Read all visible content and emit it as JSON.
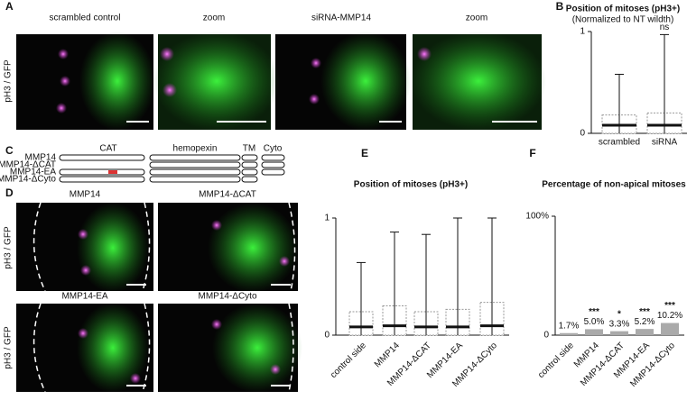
{
  "panel_a": {
    "letter": "A",
    "side_label": "pH3 / GFP",
    "headers": [
      "scrambled control",
      "zoom",
      "siRNA-MMP14",
      "zoom"
    ]
  },
  "panel_c": {
    "letter": "C",
    "domains": [
      "CAT",
      "hemopexin",
      "TM",
      "Cyto"
    ],
    "constructs": [
      "MMP14",
      "MMP14-ΔCAT",
      "MMP14-EA",
      "MMP14-ΔCyto"
    ]
  },
  "panel_d": {
    "letter": "D",
    "side_label": "pH3 / GFP",
    "headers": [
      "MMP14",
      "MMP14-ΔCAT",
      "MMP14-EA",
      "MMP14-ΔCyto"
    ]
  },
  "chart_data": [
    {
      "type": "box",
      "letter": "B",
      "title": "Position of mitoses (pH3+)",
      "subtitle": "(Normalized to NT wildth)",
      "categories": [
        "scrambled",
        "siRNA"
      ],
      "min": [
        0,
        0
      ],
      "upper": [
        0.18,
        0.2
      ],
      "median": [
        0.08,
        0.08
      ],
      "max": [
        0.58,
        0.97
      ],
      "annotations": [
        null,
        "ns"
      ],
      "ylim": [
        0,
        1
      ],
      "yticks": [
        0,
        1
      ],
      "color": "#999999"
    },
    {
      "type": "box",
      "letter": "E",
      "title": "Position of mitoses (pH3+)",
      "categories": [
        "control side",
        "MMP14",
        "MMP14-ΔCAT",
        "MMP14-EA",
        "MMP14-ΔCyto"
      ],
      "min": [
        0,
        0,
        0,
        0,
        0
      ],
      "upper": [
        0.2,
        0.25,
        0.2,
        0.22,
        0.28
      ],
      "median": [
        0.07,
        0.08,
        0.07,
        0.07,
        0.08
      ],
      "max": [
        0.62,
        0.88,
        0.86,
        1,
        1
      ],
      "ylim": [
        0,
        1
      ],
      "yticks": [
        0,
        1
      ],
      "color": "#999999"
    },
    {
      "type": "bar",
      "letter": "F",
      "title": "Percentage of non-apical mitoses",
      "categories": [
        "control side",
        "MMP14",
        "MMP14-ΔCAT",
        "MMP14-EA",
        "MMP14-ΔCyto"
      ],
      "values": [
        1.7,
        5.0,
        3.3,
        5.2,
        10.2
      ],
      "value_labels": [
        "1.7%",
        "5.0%",
        "3.3%",
        "5.2%",
        "10.2%"
      ],
      "annotations": [
        null,
        "***",
        "*",
        "***",
        "***"
      ],
      "ylim": [
        0,
        100
      ],
      "yticks": [
        0,
        {
          "value": 100,
          "label": "100%"
        }
      ],
      "color": "#aaaaaa"
    }
  ]
}
